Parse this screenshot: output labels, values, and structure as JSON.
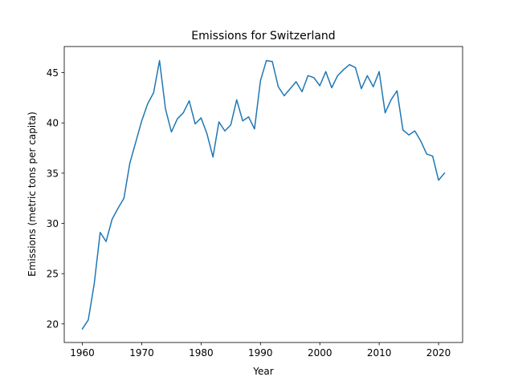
{
  "chart_data": {
    "type": "line",
    "title": "Emissions for Switzerland",
    "xlabel": "Year",
    "ylabel": "Emissions (metric tons per capita)",
    "xlim": [
      1956.95,
      2024.05
    ],
    "ylim": [
      18.15,
      47.6
    ],
    "xticks": [
      1960,
      1970,
      1980,
      1990,
      2000,
      2010,
      2020
    ],
    "yticks": [
      20,
      25,
      30,
      35,
      40,
      45
    ],
    "grid": false,
    "legend": "none",
    "line_color": "#1f77b4",
    "series": [
      {
        "x": [
          1960,
          1961,
          1962,
          1963,
          1964,
          1965,
          1966,
          1967,
          1968,
          1969,
          1970,
          1971,
          1972,
          1973,
          1974,
          1975,
          1976,
          1977,
          1978,
          1979,
          1980,
          1981,
          1982,
          1983,
          1984,
          1985,
          1986,
          1987,
          1988,
          1989,
          1990,
          1991,
          1992,
          1993,
          1994,
          1995,
          1996,
          1997,
          1998,
          1999,
          2000,
          2001,
          2002,
          2003,
          2004,
          2005,
          2006,
          2007,
          2008,
          2009,
          2010,
          2011,
          2012,
          2013,
          2014,
          2015,
          2016,
          2017,
          2018,
          2019,
          2020,
          2021
        ],
        "values": [
          19.5,
          20.4,
          24.0,
          29.1,
          28.2,
          30.4,
          31.5,
          32.5,
          36.0,
          38.1,
          40.2,
          41.9,
          43.0,
          46.2,
          41.4,
          39.1,
          40.4,
          41.0,
          42.2,
          39.9,
          40.5,
          38.9,
          36.6,
          40.1,
          39.2,
          39.8,
          42.3,
          40.2,
          40.6,
          39.4,
          44.2,
          46.2,
          46.1,
          43.6,
          42.7,
          43.4,
          44.1,
          43.1,
          44.7,
          44.5,
          43.7,
          45.1,
          43.5,
          44.7,
          45.3,
          45.8,
          45.5,
          43.4,
          44.7,
          43.6,
          45.1,
          41.0,
          42.3,
          43.2,
          39.3,
          38.8,
          39.2,
          38.2,
          36.9,
          36.7,
          34.3,
          35.0
        ]
      }
    ]
  }
}
